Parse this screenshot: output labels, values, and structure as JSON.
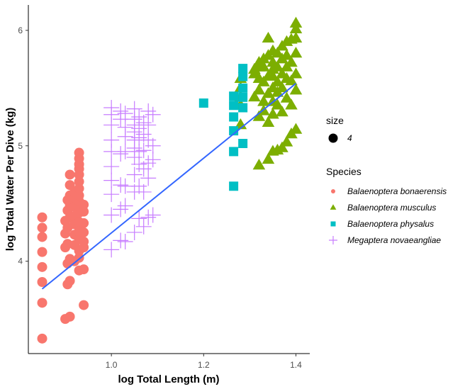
{
  "chart_data": {
    "type": "scatter",
    "xlabel": "log Total Length (m)",
    "ylabel": "log Total Water Per Dive (kg)",
    "xlim": [
      0.82,
      1.43
    ],
    "ylim": [
      3.2,
      6.22
    ],
    "x_ticks": [
      {
        "value": 1.0,
        "label": "1.0"
      },
      {
        "value": 1.2,
        "label": "1.2"
      },
      {
        "value": 1.4,
        "label": "1.4"
      }
    ],
    "y_ticks": [
      {
        "value": 4,
        "label": "4"
      },
      {
        "value": 5,
        "label": "5"
      },
      {
        "value": 6,
        "label": "6"
      }
    ],
    "grid": false,
    "legend_position": "right",
    "size_legend": {
      "title": "size",
      "entries": [
        {
          "label": "4"
        }
      ]
    },
    "color_legend": {
      "title": "Species"
    },
    "series": [
      {
        "name": "Balaenoptera bonaerensis",
        "color": "#F8766D",
        "marker": "circle",
        "points": [
          [
            0.85,
            3.33
          ],
          [
            0.85,
            3.64
          ],
          [
            0.85,
            3.82
          ],
          [
            0.85,
            3.95
          ],
          [
            0.85,
            4.08
          ],
          [
            0.85,
            4.21
          ],
          [
            0.85,
            4.29
          ],
          [
            0.85,
            4.38
          ],
          [
            0.9,
            3.5
          ],
          [
            0.91,
            3.52
          ],
          [
            0.905,
            3.8
          ],
          [
            0.91,
            3.83
          ],
          [
            0.905,
            3.98
          ],
          [
            0.91,
            4.02
          ],
          [
            0.9,
            4.12
          ],
          [
            0.905,
            4.15
          ],
          [
            0.9,
            4.24
          ],
          [
            0.905,
            4.29
          ],
          [
            0.9,
            4.35
          ],
          [
            0.91,
            4.38
          ],
          [
            0.905,
            4.44
          ],
          [
            0.91,
            4.49
          ],
          [
            0.905,
            4.53
          ],
          [
            0.91,
            4.57
          ],
          [
            0.91,
            4.66
          ],
          [
            0.91,
            4.75
          ],
          [
            0.92,
            4.0
          ],
          [
            0.92,
            4.14
          ],
          [
            0.92,
            4.23
          ],
          [
            0.92,
            4.32
          ],
          [
            0.92,
            4.39
          ],
          [
            0.92,
            4.47
          ],
          [
            0.92,
            4.55
          ],
          [
            0.92,
            4.6
          ],
          [
            0.93,
            3.92
          ],
          [
            0.93,
            4.03
          ],
          [
            0.93,
            4.09
          ],
          [
            0.93,
            4.19
          ],
          [
            0.93,
            4.26
          ],
          [
            0.93,
            4.34
          ],
          [
            0.93,
            4.42
          ],
          [
            0.93,
            4.47
          ],
          [
            0.93,
            4.52
          ],
          [
            0.93,
            4.57
          ],
          [
            0.93,
            4.63
          ],
          [
            0.93,
            4.69
          ],
          [
            0.93,
            4.75
          ],
          [
            0.93,
            4.8
          ],
          [
            0.93,
            4.84
          ],
          [
            0.93,
            4.89
          ],
          [
            0.93,
            4.94
          ],
          [
            0.94,
            3.62
          ],
          [
            0.94,
            3.93
          ],
          [
            0.94,
            4.12
          ],
          [
            0.94,
            4.17
          ],
          [
            0.94,
            4.25
          ],
          [
            0.94,
            4.33
          ],
          [
            0.94,
            4.43
          ],
          [
            0.94,
            4.49
          ]
        ]
      },
      {
        "name": "Balaenoptera musculus",
        "color": "#7CAE00",
        "marker": "triangle",
        "points": [
          [
            1.28,
            5.18
          ],
          [
            1.28,
            5.35
          ],
          [
            1.28,
            5.42
          ],
          [
            1.28,
            5.5
          ],
          [
            1.28,
            5.58
          ],
          [
            1.31,
            5.42
          ],
          [
            1.31,
            5.62
          ],
          [
            1.31,
            5.66
          ],
          [
            1.32,
            4.83
          ],
          [
            1.32,
            5.25
          ],
          [
            1.32,
            5.48
          ],
          [
            1.32,
            5.58
          ],
          [
            1.32,
            5.68
          ],
          [
            1.32,
            5.72
          ],
          [
            1.33,
            5.3
          ],
          [
            1.33,
            5.38
          ],
          [
            1.33,
            5.55
          ],
          [
            1.33,
            5.68
          ],
          [
            1.33,
            5.75
          ],
          [
            1.34,
            4.88
          ],
          [
            1.34,
            5.2
          ],
          [
            1.34,
            5.45
          ],
          [
            1.34,
            5.6
          ],
          [
            1.34,
            5.78
          ],
          [
            1.34,
            5.93
          ],
          [
            1.35,
            4.95
          ],
          [
            1.35,
            5.27
          ],
          [
            1.35,
            5.38
          ],
          [
            1.35,
            5.5
          ],
          [
            1.35,
            5.6
          ],
          [
            1.35,
            5.66
          ],
          [
            1.35,
            5.72
          ],
          [
            1.35,
            5.82
          ],
          [
            1.36,
            4.96
          ],
          [
            1.36,
            5.35
          ],
          [
            1.36,
            5.46
          ],
          [
            1.36,
            5.55
          ],
          [
            1.36,
            5.68
          ],
          [
            1.36,
            5.8
          ],
          [
            1.37,
            4.98
          ],
          [
            1.37,
            5.29
          ],
          [
            1.37,
            5.5
          ],
          [
            1.37,
            5.62
          ],
          [
            1.37,
            5.75
          ],
          [
            1.37,
            5.86
          ],
          [
            1.38,
            5.03
          ],
          [
            1.38,
            5.41
          ],
          [
            1.38,
            5.58
          ],
          [
            1.38,
            5.68
          ],
          [
            1.38,
            5.78
          ],
          [
            1.38,
            5.9
          ],
          [
            1.39,
            5.1
          ],
          [
            1.39,
            5.35
          ],
          [
            1.39,
            5.56
          ],
          [
            1.39,
            5.72
          ],
          [
            1.39,
            5.92
          ],
          [
            1.4,
            5.14
          ],
          [
            1.4,
            5.48
          ],
          [
            1.4,
            5.62
          ],
          [
            1.4,
            5.8
          ],
          [
            1.4,
            5.93
          ],
          [
            1.4,
            6.01
          ],
          [
            1.4,
            6.06
          ]
        ]
      },
      {
        "name": "Balaenoptera physalus",
        "color": "#00BFC4",
        "marker": "square",
        "points": [
          [
            1.2,
            5.37
          ],
          [
            1.265,
            4.65
          ],
          [
            1.265,
            4.95
          ],
          [
            1.265,
            5.13
          ],
          [
            1.265,
            5.25
          ],
          [
            1.265,
            5.35
          ],
          [
            1.265,
            5.43
          ],
          [
            1.285,
            5.02
          ],
          [
            1.285,
            5.33
          ],
          [
            1.285,
            5.42
          ],
          [
            1.285,
            5.5
          ],
          [
            1.285,
            5.6
          ],
          [
            1.285,
            5.67
          ]
        ]
      },
      {
        "name": "Megaptera novaeangliae",
        "color": "#C77CFF",
        "marker": "plus",
        "points": [
          [
            1.0,
            4.1
          ],
          [
            1.0,
            4.4
          ],
          [
            1.0,
            4.58
          ],
          [
            1.0,
            4.7
          ],
          [
            1.0,
            4.82
          ],
          [
            1.0,
            4.95
          ],
          [
            1.0,
            5.05
          ],
          [
            1.0,
            5.18
          ],
          [
            1.0,
            5.27
          ],
          [
            1.0,
            5.33
          ],
          [
            1.02,
            4.18
          ],
          [
            1.02,
            4.45
          ],
          [
            1.02,
            4.66
          ],
          [
            1.02,
            4.93
          ],
          [
            1.02,
            5.23
          ],
          [
            1.02,
            5.3
          ],
          [
            1.03,
            4.17
          ],
          [
            1.03,
            4.48
          ],
          [
            1.03,
            4.65
          ],
          [
            1.03,
            4.95
          ],
          [
            1.03,
            5.08
          ],
          [
            1.03,
            5.16
          ],
          [
            1.03,
            5.28
          ],
          [
            1.05,
            4.25
          ],
          [
            1.05,
            4.6
          ],
          [
            1.05,
            4.75
          ],
          [
            1.05,
            4.9
          ],
          [
            1.05,
            4.98
          ],
          [
            1.05,
            5.05
          ],
          [
            1.05,
            5.12
          ],
          [
            1.05,
            5.18
          ],
          [
            1.05,
            5.23
          ],
          [
            1.05,
            5.32
          ],
          [
            1.06,
            4.37
          ],
          [
            1.06,
            4.65
          ],
          [
            1.06,
            4.84
          ],
          [
            1.06,
            4.95
          ],
          [
            1.06,
            5.07
          ],
          [
            1.06,
            5.15
          ],
          [
            1.06,
            5.25
          ],
          [
            1.07,
            4.3
          ],
          [
            1.07,
            4.6
          ],
          [
            1.07,
            4.8
          ],
          [
            1.07,
            4.96
          ],
          [
            1.07,
            5.1
          ],
          [
            1.07,
            5.2
          ],
          [
            1.08,
            4.38
          ],
          [
            1.08,
            4.72
          ],
          [
            1.08,
            4.85
          ],
          [
            1.08,
            5.05
          ],
          [
            1.08,
            5.18
          ],
          [
            1.08,
            5.3
          ],
          [
            1.09,
            4.4
          ],
          [
            1.09,
            4.88
          ],
          [
            1.09,
            5.0
          ],
          [
            1.09,
            5.27
          ]
        ]
      }
    ],
    "trend_line": {
      "color": "#3366FF",
      "x": [
        0.85,
        1.4
      ],
      "y": [
        3.76,
        5.54
      ]
    }
  }
}
